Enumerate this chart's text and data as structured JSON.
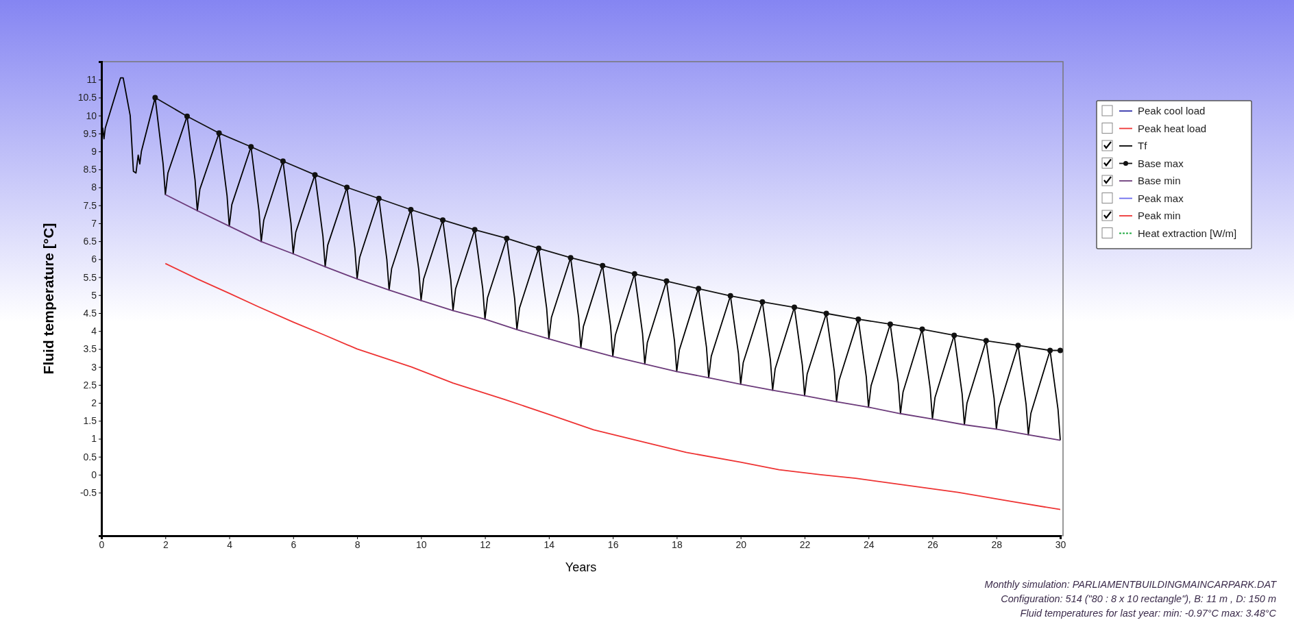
{
  "chart_data": {
    "type": "line",
    "xlabel": "Years",
    "ylabel": "Fluid temperature [°C]",
    "xlim": [
      0,
      30
    ],
    "xticks": [
      0,
      2,
      4,
      6,
      8,
      10,
      12,
      14,
      16,
      18,
      20,
      22,
      24,
      26,
      28,
      30
    ],
    "ylim": [
      -1.7,
      11.5
    ],
    "yticks": [
      -0.5,
      0,
      0.5,
      1,
      1.5,
      2,
      2.5,
      3,
      3.5,
      4,
      4.5,
      5,
      5.5,
      6,
      6.5,
      7,
      7.5,
      8,
      8.5,
      9,
      9.5,
      10,
      10.5,
      11
    ],
    "grid": false,
    "legend": "top right",
    "series": [
      {
        "name": "Peak cool load",
        "color": "#3333aa"
      },
      {
        "name": "Peak heat load",
        "color": "#ee3333"
      },
      {
        "name": "Tf",
        "color": "#000000",
        "x": [
          0,
          0.04,
          0.08,
          0.12,
          0.6,
          0.68,
          0.9,
          1.0,
          1.08,
          1.15,
          1.2,
          1.25,
          1.68,
          1.93,
          2,
          2.08,
          2.68,
          2.93,
          3,
          3.08,
          3.68,
          3.93,
          4,
          4.08,
          4.68,
          4.93,
          5,
          5.08,
          5.68,
          5.93,
          6,
          6.08,
          6.68,
          6.93,
          7,
          7.08,
          7.68,
          7.93,
          8,
          8.08,
          8.68,
          8.93,
          9,
          9.08,
          9.68,
          9.93,
          10,
          10.08,
          10.68,
          10.93,
          11,
          11.08,
          11.68,
          11.93,
          12,
          12.08,
          12.68,
          12.93,
          13,
          13.08,
          13.68,
          13.93,
          14,
          14.08,
          14.68,
          14.93,
          15,
          15.08,
          15.68,
          15.93,
          16,
          16.08,
          16.68,
          16.93,
          17,
          17.08,
          17.68,
          17.93,
          18,
          18.08,
          18.68,
          18.93,
          19,
          19.08,
          19.68,
          19.93,
          20,
          20.08,
          20.68,
          20.93,
          21,
          21.08,
          21.68,
          21.93,
          22,
          22.08,
          22.68,
          22.93,
          23,
          23.08,
          23.68,
          23.93,
          24,
          24.08,
          24.68,
          24.93,
          25,
          25.08,
          25.68,
          25.93,
          26,
          26.08,
          26.68,
          26.93,
          27,
          27.08,
          27.68,
          27.93,
          28,
          28.08,
          28.68,
          28.93,
          29,
          29.08,
          29.68,
          29.93,
          30
        ],
        "values": [
          9.3,
          9.65,
          9.35,
          9.65,
          11.05,
          11.05,
          10.0,
          8.45,
          8.4,
          8.9,
          8.65,
          9.0,
          10.5,
          8.65,
          7.8,
          8.4,
          9.98,
          8.2,
          7.35,
          7.95,
          9.51,
          7.77,
          6.92,
          7.52,
          9.13,
          7.34,
          6.49,
          7.09,
          8.73,
          7.0,
          6.15,
          6.75,
          8.35,
          6.64,
          5.79,
          6.39,
          8.0,
          6.3,
          5.45,
          6.05,
          7.69,
          5.99,
          5.14,
          5.74,
          7.38,
          5.7,
          4.85,
          5.45,
          7.09,
          5.42,
          4.57,
          5.17,
          6.82,
          5.18,
          4.33,
          4.93,
          6.58,
          4.89,
          4.04,
          4.64,
          6.3,
          4.63,
          3.78,
          4.38,
          6.04,
          4.38,
          3.53,
          4.13,
          5.82,
          4.14,
          3.29,
          3.89,
          5.59,
          3.93,
          3.08,
          3.68,
          5.39,
          3.72,
          2.87,
          3.47,
          5.18,
          3.55,
          2.7,
          3.3,
          4.98,
          3.37,
          2.52,
          3.12,
          4.81,
          3.2,
          2.35,
          2.95,
          4.66,
          3.05,
          2.2,
          2.8,
          4.49,
          2.88,
          2.03,
          2.63,
          4.33,
          2.73,
          1.88,
          2.48,
          4.19,
          2.55,
          1.7,
          2.3,
          4.05,
          2.4,
          1.55,
          2.15,
          3.88,
          2.24,
          1.39,
          1.99,
          3.73,
          2.12,
          1.27,
          1.87,
          3.6,
          1.96,
          1.11,
          1.71,
          3.46,
          1.81,
          0.96
        ]
      },
      {
        "name": "Base max",
        "color": "#111111",
        "marker": "circle",
        "x": [
          1.68,
          2.68,
          3.68,
          4.68,
          5.68,
          6.68,
          7.68,
          8.68,
          9.68,
          10.68,
          11.68,
          12.68,
          13.68,
          14.68,
          15.68,
          16.68,
          17.68,
          18.68,
          19.68,
          20.68,
          21.68,
          22.68,
          23.68,
          24.68,
          25.68,
          26.68,
          27.68,
          28.68,
          29.68,
          30
        ],
        "values": [
          10.5,
          9.98,
          9.51,
          9.13,
          8.73,
          8.35,
          8.0,
          7.69,
          7.38,
          7.09,
          6.82,
          6.58,
          6.3,
          6.04,
          5.82,
          5.59,
          5.39,
          5.18,
          4.98,
          4.81,
          4.66,
          4.49,
          4.33,
          4.19,
          4.05,
          3.88,
          3.73,
          3.6,
          3.46,
          3.46
        ]
      },
      {
        "name": "Base min",
        "color": "#6b3a7a",
        "x": [
          2,
          3,
          4,
          5,
          6,
          7,
          8,
          9,
          10,
          11,
          12,
          13,
          14,
          15,
          16,
          17,
          18,
          19,
          20,
          21,
          22,
          23,
          24,
          25,
          26,
          27,
          28,
          29,
          30
        ],
        "values": [
          7.8,
          7.35,
          6.92,
          6.49,
          6.15,
          5.79,
          5.45,
          5.14,
          4.85,
          4.57,
          4.33,
          4.04,
          3.78,
          3.53,
          3.29,
          3.08,
          2.87,
          2.7,
          2.52,
          2.35,
          2.2,
          2.03,
          1.88,
          1.7,
          1.55,
          1.39,
          1.27,
          1.11,
          0.96
        ]
      },
      {
        "name": "Peak max",
        "color": "#6a6aee"
      },
      {
        "name": "Peak min",
        "color": "#ee3333",
        "x": [
          2,
          3,
          4,
          4.9,
          6,
          7,
          8,
          9.7,
          11,
          12.6,
          14,
          15.4,
          17,
          18.3,
          20,
          21.2,
          22.5,
          23.6,
          25,
          26.8,
          28.5,
          30
        ],
        "values": [
          5.88,
          5.45,
          5.05,
          4.68,
          4.25,
          3.88,
          3.5,
          3.0,
          2.55,
          2.1,
          1.68,
          1.25,
          0.9,
          0.62,
          0.35,
          0.14,
          0.0,
          -0.1,
          -0.27,
          -0.49,
          -0.75,
          -0.97
        ]
      },
      {
        "name": "Heat extraction [W/m]",
        "color": "#22aa44",
        "line_style": "dashed"
      }
    ],
    "annotations": [
      "Monthly simulation: PARLIAMENTBUILDINGMAINCARPARK.DAT",
      "Configuration: 514 (\"80 : 8 x 10 rectangle\"), B: 11 m , D: 150 m",
      "Fluid temperatures for last year: min: -0.97°C max: 3.48°C"
    ]
  }
}
